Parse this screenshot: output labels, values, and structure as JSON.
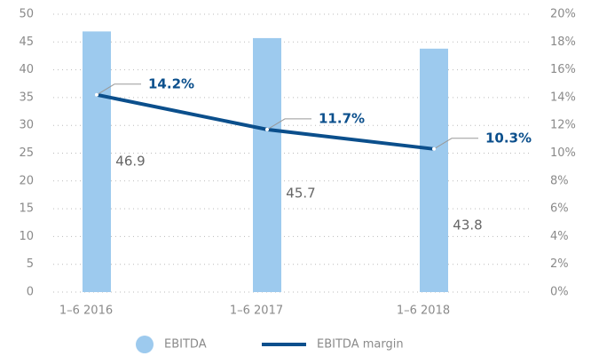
{
  "chart_data": {
    "type": "bar_line",
    "categories": [
      "1–6 2016",
      "1–6 2017",
      "1–6 2018"
    ],
    "series": [
      {
        "name": "EBITDA",
        "type": "bar",
        "color": "#9dcaee",
        "values": [
          46.9,
          45.7,
          43.8
        ]
      },
      {
        "name": "EBITDA margin",
        "type": "line",
        "axis": "y2",
        "color": "#0b4f8c",
        "values": [
          14.2,
          11.7,
          10.3
        ],
        "value_labels": [
          "14.2%",
          "11.7%",
          "10.3%"
        ]
      }
    ],
    "ylim": [
      0,
      50
    ],
    "yticks": [
      0,
      5,
      10,
      15,
      20,
      25,
      30,
      35,
      40,
      45,
      50
    ],
    "y2lim": [
      0,
      20
    ],
    "y2ticks": [
      {
        "value": 0,
        "label": "0%"
      },
      {
        "value": 2,
        "label": "2%"
      },
      {
        "value": 4,
        "label": "4%"
      },
      {
        "value": 6,
        "label": "6%"
      },
      {
        "value": 8,
        "label": "8%"
      },
      {
        "value": 10,
        "label": "10%"
      },
      {
        "value": 12,
        "label": "12%"
      },
      {
        "value": 14,
        "label": "14%"
      },
      {
        "value": 16,
        "label": "16%"
      },
      {
        "value": 18,
        "label": "18%"
      },
      {
        "value": 20,
        "label": "20%"
      }
    ],
    "grid": true,
    "legend": "bottom"
  }
}
